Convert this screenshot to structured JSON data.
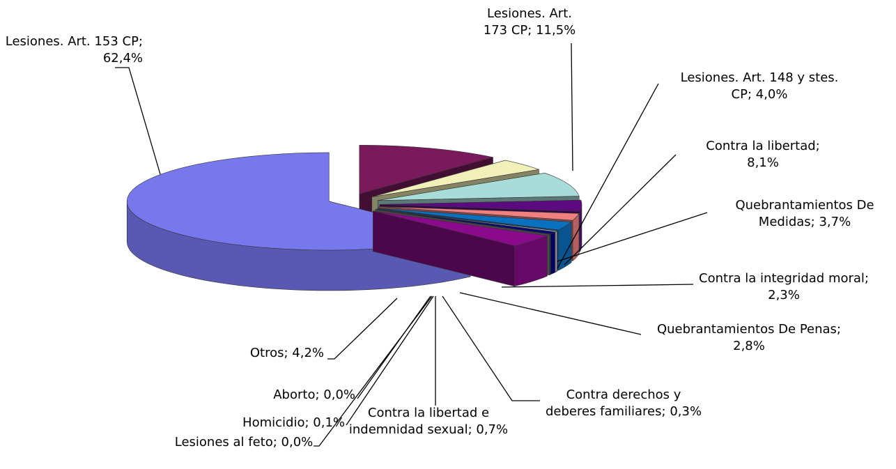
{
  "chart_data": {
    "type": "pie",
    "categories": [
      "Lesiones. Art. 173 CP;",
      "Lesiones. Art. 148 y stes. CP;",
      "Contra la libertad;",
      "Quebrantamientos De Medidas;",
      "Contra la integridad moral;",
      "Quebrantamientos De Penas;",
      "Contra derechos y deberes familiares;",
      "Contra la libertad e indemnidad sexual;",
      "Homicidio;",
      "Aborto;",
      "Lesiones al feto;",
      "Otros;",
      "Lesiones. Art. 153 CP;"
    ],
    "values": [
      11.5,
      4.0,
      8.1,
      3.7,
      2.3,
      2.8,
      0.3,
      0.7,
      0.1,
      0.0,
      0.0,
      4.2,
      62.4
    ],
    "value_labels": [
      "11,5%",
      "4,0%",
      "8,1%",
      "3,7%",
      "2,3%",
      "2,8%",
      "0,3%",
      "0,7%",
      "0,1%",
      "0,0%",
      "0,0%",
      "4,2%",
      "62,4%"
    ],
    "colors": [
      "#7a1a5c",
      "#f0f0b8",
      "#a8dcd8",
      "#5c0a80",
      "#f08080",
      "#0a70c0",
      "#c8c8e8",
      "#000080",
      "#007070",
      "#666666",
      "#888888",
      "#8b0a8b",
      "#7777ee"
    ]
  }
}
